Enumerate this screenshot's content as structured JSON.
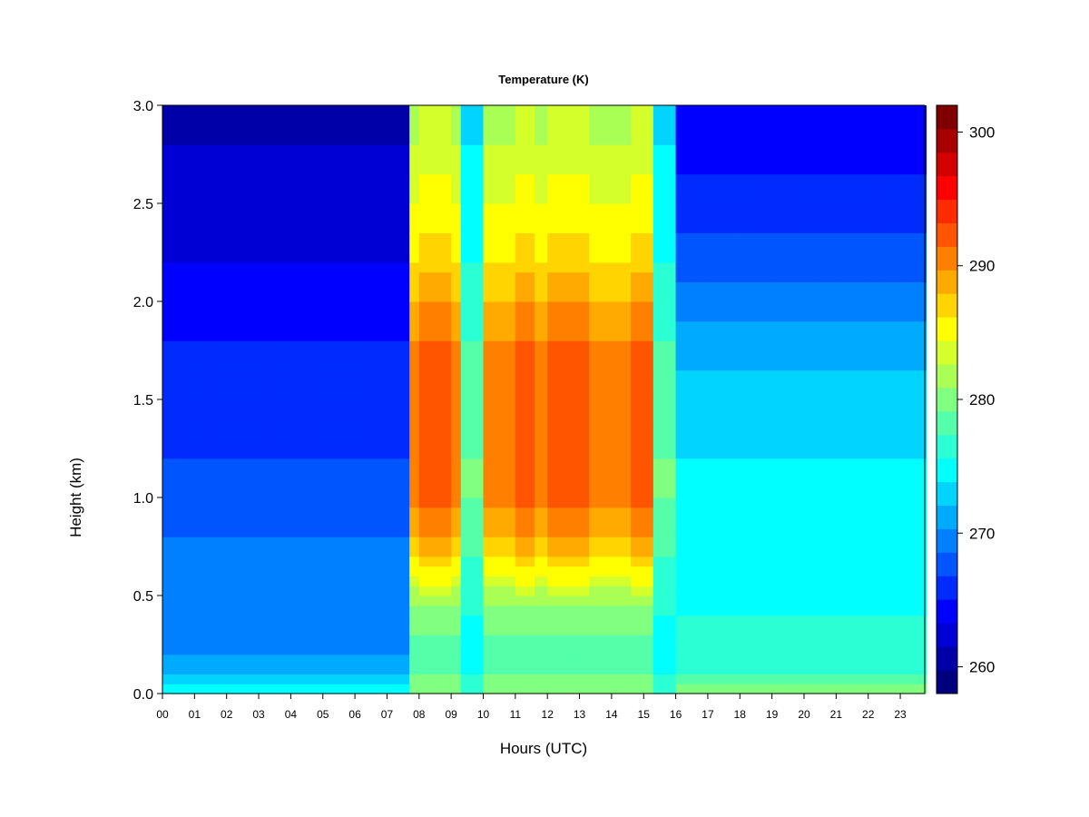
{
  "chart_data": {
    "type": "heatmap",
    "title": "Temperature (K)",
    "xlabel": "Hours (UTC)",
    "ylabel": "Height (km)",
    "x_ticks": [
      "00",
      "01",
      "02",
      "03",
      "04",
      "05",
      "06",
      "07",
      "08",
      "09",
      "10",
      "11",
      "12",
      "13",
      "14",
      "15",
      "16",
      "17",
      "18",
      "19",
      "20",
      "21",
      "22",
      "23"
    ],
    "y_ticks": [
      "0.0",
      "0.5",
      "1.0",
      "1.5",
      "2.0",
      "2.5",
      "3.0"
    ],
    "xlim": [
      0,
      24
    ],
    "ylim": [
      0,
      3.0
    ],
    "colorbar": {
      "ticks": [
        "260",
        "270",
        "280",
        "290",
        "300"
      ],
      "range": [
        258,
        302
      ],
      "step": 2,
      "colors": [
        "#00007f",
        "#0000a8",
        "#0000d4",
        "#0000ff",
        "#002bff",
        "#0055ff",
        "#0080ff",
        "#00aaff",
        "#00d4ff",
        "#00ffff",
        "#2bffd4",
        "#55ffaa",
        "#80ff80",
        "#aaff55",
        "#d4ff2b",
        "#ffff00",
        "#ffd400",
        "#ffaa00",
        "#ff8000",
        "#ff5500",
        "#ff2b00",
        "#ff0000",
        "#d40000",
        "#a80000",
        "#7f0000"
      ]
    },
    "grid": false,
    "x_hours": [
      0,
      0.5,
      1,
      1.5,
      2,
      2.5,
      3,
      3.5,
      4,
      4.5,
      5,
      5.5,
      6,
      6.5,
      7,
      7.5,
      7.7,
      8,
      8.3,
      8.6,
      9,
      9.3,
      9.6,
      10,
      10.3,
      10.6,
      11,
      11.3,
      11.6,
      12,
      12.3,
      12.6,
      13,
      13.3,
      13.6,
      14,
      14.3,
      14.6,
      15,
      15.3,
      15.5,
      16,
      16.5,
      17,
      17.5,
      18,
      18.5,
      19,
      19.5,
      20,
      20.5,
      21,
      21.5,
      22,
      22.5,
      23,
      23.5,
      23.8
    ],
    "z_levels_km": [
      0.0,
      0.05,
      0.1,
      0.2,
      0.3,
      0.4,
      0.5,
      0.6,
      0.8,
      1.0,
      1.2,
      1.5,
      1.8,
      2.0,
      2.2,
      2.5,
      2.8,
      3.0
    ],
    "profiles": {
      "night_early": [
        279,
        276,
        274,
        272,
        271,
        270,
        270,
        270,
        270,
        269,
        268,
        267,
        266,
        265,
        264,
        263,
        262,
        261
      ],
      "day_warm": [
        282,
        283,
        282,
        281,
        282,
        283,
        285,
        288,
        292,
        295,
        296,
        295,
        294,
        292,
        290,
        288,
        286,
        285
      ],
      "day_peak": [
        282,
        283,
        282,
        281,
        282,
        283,
        285,
        289,
        294,
        297,
        298,
        297,
        296,
        294,
        291,
        289,
        287,
        286
      ],
      "day_dip": [
        279,
        279,
        278,
        277,
        277,
        278,
        278,
        279,
        281,
        282,
        282,
        281,
        280,
        279,
        278,
        277,
        276,
        275
      ],
      "night_late": [
        285,
        282,
        280,
        279,
        278,
        278,
        277,
        277,
        277,
        276,
        276,
        275,
        273,
        271,
        269,
        267,
        265,
        264
      ]
    }
  }
}
